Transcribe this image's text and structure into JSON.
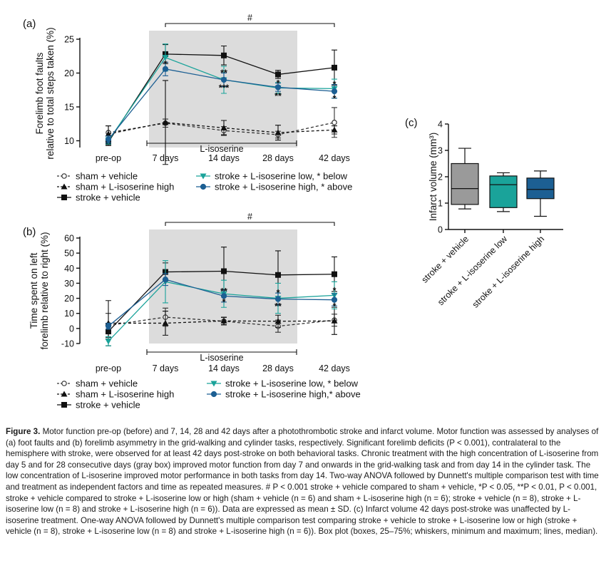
{
  "chart_data": [
    {
      "panel_label": "(a)",
      "type": "line",
      "ylabel_lines": [
        "Forelimb foot faults",
        "relative to total steps taken (%)"
      ],
      "categories": [
        "pre-op",
        "7 days",
        "14 days",
        "28 days",
        "42 days"
      ],
      "ylim": [
        9,
        25
      ],
      "yticks": [
        10,
        15,
        20,
        25
      ],
      "bracket_label": "#",
      "treatment_bar_label": "L-isoserine",
      "shaded_region": [
        "7 days",
        "28 days"
      ],
      "series": [
        {
          "name": "sham + vehicle",
          "marker": "open-circle",
          "dash": true,
          "color": "#333333",
          "values": [
            11.2,
            12.6,
            11.5,
            10.9,
            12.7
          ],
          "err": [
            1.0,
            0.6,
            0.6,
            0.5,
            2.2
          ]
        },
        {
          "name": "sham + L-isoserine high",
          "marker": "triangle",
          "dash": true,
          "color": "#111111",
          "values": [
            11.0,
            12.7,
            11.9,
            11.2,
            11.6
          ],
          "err": [
            1.2,
            6.2,
            1.1,
            1.1,
            0.6
          ]
        },
        {
          "name": "stroke + vehicle",
          "marker": "square",
          "dash": false,
          "color": "#111111",
          "values": [
            9.8,
            22.8,
            22.6,
            19.8,
            20.8
          ],
          "err": [
            0.5,
            1.4,
            1.4,
            0.6,
            2.6
          ]
        },
        {
          "name": "stroke + L-isoserine low, * below",
          "marker": "triangle-down",
          "dash": false,
          "color": "#1aa39a",
          "values": [
            10.0,
            22.3,
            19.0,
            17.8,
            17.7
          ],
          "err": [
            0.5,
            2.0,
            2.0,
            0.8,
            1.4
          ]
        },
        {
          "name": "stroke + L-isoserine high, * above",
          "marker": "circle",
          "dash": false,
          "color": "#1c5f93",
          "values": [
            10.2,
            20.6,
            19.0,
            17.9,
            17.3
          ],
          "err": [
            0.5,
            1.0,
            1.0,
            0.6,
            1.0
          ]
        }
      ],
      "annotations": [
        {
          "category": "7 days",
          "y": 21.3,
          "text": "*"
        },
        {
          "category": "14 days",
          "y": 20.0,
          "text": "**"
        },
        {
          "category": "14 days",
          "y": 17.8,
          "text": "***"
        },
        {
          "category": "28 days",
          "y": 18.5,
          "text": "*"
        },
        {
          "category": "28 days",
          "y": 16.6,
          "text": "**"
        },
        {
          "category": "42 days",
          "y": 18.3,
          "text": "*"
        },
        {
          "category": "42 days",
          "y": 16.2,
          "text": "*"
        }
      ]
    },
    {
      "panel_label": "(b)",
      "type": "line",
      "ylabel_lines": [
        "Time spent on left",
        "forelimb relative to right (%)"
      ],
      "categories": [
        "pre-op",
        "7 days",
        "14 days",
        "28 days",
        "42 days"
      ],
      "ylim": [
        -10,
        60
      ],
      "yticks": [
        -10,
        0,
        10,
        20,
        30,
        40,
        50,
        60
      ],
      "bracket_label": "#",
      "treatment_bar_label": "L-isoserine",
      "shaded_region": [
        "7 days",
        "28 days"
      ],
      "series": [
        {
          "name": "sham + vehicle",
          "marker": "open-circle",
          "dash": true,
          "color": "#333333",
          "values": [
            2.0,
            7.5,
            4.8,
            1.5,
            5.5
          ],
          "err": [
            8.0,
            6.0,
            2.5,
            4.0,
            4.0
          ]
        },
        {
          "name": "sham + L-isoserine high",
          "marker": "triangle",
          "dash": true,
          "color": "#111111",
          "values": [
            3.5,
            3.5,
            5.0,
            4.8,
            5.0
          ],
          "err": [
            15.0,
            8.0,
            2.5,
            4.0,
            9.0
          ]
        },
        {
          "name": "stroke + vehicle",
          "marker": "square",
          "dash": false,
          "color": "#111111",
          "values": [
            -2.0,
            37.5,
            38.0,
            35.5,
            36.0
          ],
          "err": [
            5.0,
            6.0,
            16.0,
            16.0,
            11.5
          ]
        },
        {
          "name": "stroke + L-isoserine low, * below",
          "marker": "triangle-down",
          "dash": false,
          "color": "#1aa39a",
          "values": [
            -8.5,
            31.0,
            23.0,
            20.0,
            22.0
          ],
          "err": [
            3.0,
            14.0,
            9.0,
            10.0,
            9.0
          ]
        },
        {
          "name": "stroke + L-isoserine high,* above",
          "marker": "circle",
          "dash": false,
          "color": "#1c5f93",
          "values": [
            1.5,
            32.5,
            21.5,
            19.5,
            19.0
          ],
          "err": [
            2.0,
            4.0,
            4.0,
            4.0,
            4.0
          ]
        }
      ],
      "annotations": [
        {
          "category": "14 days",
          "y": 24.5,
          "text": "**"
        },
        {
          "category": "14 days",
          "y": 17.5,
          "text": "*"
        },
        {
          "category": "28 days",
          "y": 23.5,
          "text": "*"
        },
        {
          "category": "28 days",
          "y": 14.5,
          "text": "**"
        },
        {
          "category": "42 days",
          "y": 25.0,
          "text": "*"
        },
        {
          "category": "42 days",
          "y": 14.5,
          "text": "*"
        }
      ]
    },
    {
      "panel_label": "(c)",
      "type": "box",
      "ylabel": "Infarct volume (mm³)",
      "ylim": [
        0,
        4
      ],
      "yticks": [
        0,
        1,
        2,
        3,
        4
      ],
      "categories": [
        "stroke + vehicle",
        "stroke + L-isoserine low",
        "stroke + L-isoserine high"
      ],
      "boxes": [
        {
          "min": 0.78,
          "q1": 0.95,
          "median": 1.55,
          "q3": 2.5,
          "max": 3.08,
          "color": "#9a9a9a"
        },
        {
          "min": 0.68,
          "q1": 0.83,
          "median": 1.7,
          "q3": 2.03,
          "max": 2.15,
          "color": "#1aa39a"
        },
        {
          "min": 0.5,
          "q1": 1.17,
          "median": 1.52,
          "q3": 1.95,
          "max": 2.22,
          "color": "#1c5f93"
        }
      ]
    }
  ],
  "caption": {
    "lead": "Figure 3.",
    "text": "Motor function pre-op (before) and 7, 14, 28 and 42 days after a photothrombotic stroke and infarct volume. Motor function was assessed by analyses of (a) foot faults and (b) forelimb asymmetry in the grid-walking and cylinder tasks, respectively. Significant forelimb deficits (P < 0.001), contralateral to the hemisphere with stroke, were observed for at least 42 days post-stroke on both behavioral tasks. Chronic treatment with the high concentration of L-isoserine from day 5 and for 28 consecutive days (gray box) improved motor function from day 7 and onwards in the grid-walking task and from day 14 in the cylinder task. The low concentration of L-isoserine improved motor performance in both tasks from day 14. Two-way ANOVA followed by Dunnett's multiple comparison test with time and treatment as independent factors and time as repeated measures. # P < 0.001 stroke + vehicle compared to sham + vehicle, *P < 0.05, **P < 0.01, P < 0.001, stroke + vehicle compared to stroke + L-isoserine low or high (sham + vehicle (n = 6) and sham + L-isoserine high (n = 6); stroke + vehicle (n = 8), stroke + L-isoserine low (n = 8) and stroke + L-isoserine high (n = 6)). Data are expressed as mean ± SD. (c) Infarct volume 42 days post-stroke was unaffected by L-isoserine treatment. One-way ANOVA followed by Dunnett's multiple comparison test comparing stroke + vehicle to stroke + L-isoserine low or high (stroke + vehicle (n = 8), stroke + L-isoserine low (n = 8) and stroke + L-isoserine high (n = 6)). Box plot (boxes, 25–75%; whiskers, minimum and maximum; lines, median)."
  }
}
